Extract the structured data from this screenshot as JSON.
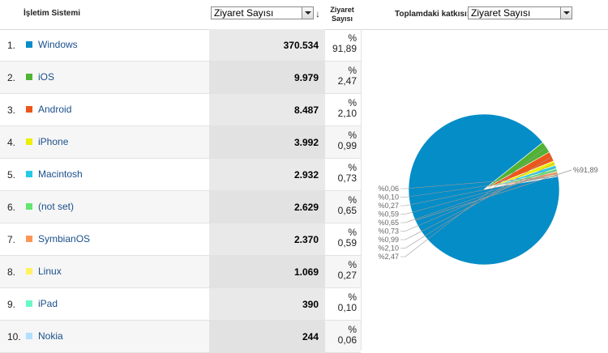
{
  "header": {
    "dimension_label": "İşletim Sistemi",
    "metric_select": "Ziyaret Sayısı",
    "metric_col_line1": "Ziyaret",
    "metric_col_line2": "Sayısı",
    "share_label": "Toplamdaki katkısı:",
    "share_select": "Ziyaret Sayısı"
  },
  "rows": [
    {
      "num": "1.",
      "name": "Windows",
      "visits": "370.534",
      "pct_sign": "%",
      "pct": "91,89",
      "color": "#058dc7"
    },
    {
      "num": "2.",
      "name": "iOS",
      "visits": "9.979",
      "pct_sign": "%",
      "pct": "2,47",
      "color": "#50b432"
    },
    {
      "num": "3.",
      "name": "Android",
      "visits": "8.487",
      "pct_sign": "%",
      "pct": "2,10",
      "color": "#ed561b"
    },
    {
      "num": "4.",
      "name": "iPhone",
      "visits": "3.992",
      "pct_sign": "%",
      "pct": "0,99",
      "color": "#edef00"
    },
    {
      "num": "5.",
      "name": "Macintosh",
      "visits": "2.932",
      "pct_sign": "%",
      "pct": "0,73",
      "color": "#24cbe5"
    },
    {
      "num": "6.",
      "name": "(not set)",
      "visits": "2.629",
      "pct_sign": "%",
      "pct": "0,65",
      "color": "#64e572"
    },
    {
      "num": "7.",
      "name": "SymbianOS",
      "visits": "2.370",
      "pct_sign": "%",
      "pct": "0,59",
      "color": "#ff9655"
    },
    {
      "num": "8.",
      "name": "Linux",
      "visits": "1.069",
      "pct_sign": "%",
      "pct": "0,27",
      "color": "#fff263"
    },
    {
      "num": "9.",
      "name": "iPad",
      "visits": "390",
      "pct_sign": "%",
      "pct": "0,10",
      "color": "#6af9c4"
    },
    {
      "num": "10.",
      "name": "Nokia",
      "visits": "244",
      "pct_sign": "%",
      "pct": "0,06",
      "color": "#b2deff"
    }
  ],
  "chart_data": {
    "type": "pie",
    "slices": [
      {
        "label": "Windows",
        "value": 91.89,
        "text": "%91,89",
        "color": "#058dc7"
      },
      {
        "label": "iOS",
        "value": 2.47,
        "text": "%2,47",
        "color": "#50b432"
      },
      {
        "label": "Android",
        "value": 2.1,
        "text": "%2,10",
        "color": "#ed561b"
      },
      {
        "label": "iPhone",
        "value": 0.99,
        "text": "%0,99",
        "color": "#edef00"
      },
      {
        "label": "Macintosh",
        "value": 0.73,
        "text": "%0,73",
        "color": "#24cbe5"
      },
      {
        "label": "(not set)",
        "value": 0.65,
        "text": "%0,65",
        "color": "#64e572"
      },
      {
        "label": "SymbianOS",
        "value": 0.59,
        "text": "%0,59",
        "color": "#ff9655"
      },
      {
        "label": "Linux",
        "value": 0.27,
        "text": "%0,27",
        "color": "#fff263"
      },
      {
        "label": "iPad",
        "value": 0.1,
        "text": "%0,10",
        "color": "#6af9c4"
      },
      {
        "label": "Nokia",
        "value": 0.06,
        "text": "%0,06",
        "color": "#b2deff"
      }
    ]
  }
}
